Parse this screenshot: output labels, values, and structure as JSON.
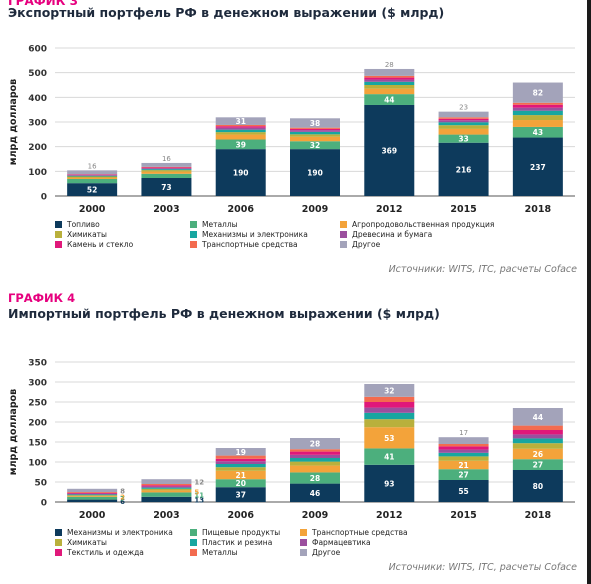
{
  "chart_data": [
    {
      "type": "bar",
      "stacked": true,
      "label": "ГРАФИК 3",
      "title": "Экспортный портфель РФ в денежном выражении ($ млрд)",
      "ylabel": "млрд долларов",
      "ylim": [
        0,
        600
      ],
      "yticks": [
        0,
        100,
        200,
        300,
        400,
        500,
        600
      ],
      "categories": [
        "2000",
        "2003",
        "2006",
        "2009",
        "2012",
        "2015",
        "2018"
      ],
      "grid": true,
      "legend_position": "bottom",
      "source": "Источники: WITS, ITC, расчеты Coface",
      "series": [
        {
          "name": "Топливо",
          "color": "#0d3a5c",
          "values": [
            52,
            73,
            190,
            190,
            369,
            216,
            237
          ]
        },
        {
          "name": "Металлы",
          "color": "#4caf7d",
          "values": [
            17,
            17,
            39,
            32,
            44,
            33,
            43
          ]
        },
        {
          "name": "Агропродовольственная продукция",
          "color": "#f3a33a",
          "values": [
            6,
            9,
            20,
            18,
            22,
            23,
            28
          ]
        },
        {
          "name": "Химикаты",
          "color": "#b9b03c",
          "values": [
            4,
            6,
            10,
            10,
            15,
            15,
            20
          ]
        },
        {
          "name": "Механизмы и электроника",
          "color": "#17a6a0",
          "values": [
            3,
            4,
            10,
            10,
            13,
            12,
            18
          ]
        },
        {
          "name": "Древесина и бумага",
          "color": "#9b4f9e",
          "values": [
            3,
            4,
            8,
            7,
            9,
            8,
            12
          ]
        },
        {
          "name": "Камень и стекло",
          "color": "#e0187a",
          "values": [
            2,
            3,
            6,
            5,
            8,
            6,
            12
          ]
        },
        {
          "name": "Транспортные средства",
          "color": "#f36b4f",
          "values": [
            1,
            2,
            5,
            5,
            7,
            6,
            8
          ]
        },
        {
          "name": "Другое",
          "color": "#a3a3ba",
          "values": [
            16,
            16,
            31,
            38,
            28,
            23,
            82
          ]
        }
      ],
      "data_labels": {
        "Топливо": [
          52,
          73,
          190,
          190,
          369,
          216,
          237
        ],
        "Металлы": [
          17,
          17,
          39,
          32,
          44,
          33,
          43
        ],
        "Другое": [
          16,
          16,
          31,
          38,
          28,
          23,
          82
        ]
      }
    },
    {
      "type": "bar",
      "stacked": true,
      "label": "ГРАФИК 4",
      "title": "Импортный портфель РФ в денежном выражении ($ млрд)",
      "ylabel": "млрд долларов",
      "ylim": [
        0,
        350
      ],
      "yticks": [
        0,
        50,
        100,
        150,
        200,
        250,
        300,
        350
      ],
      "categories": [
        "2000",
        "2003",
        "2006",
        "2009",
        "2012",
        "2015",
        "2018"
      ],
      "grid": true,
      "legend_position": "bottom",
      "source": "Источники: WITS, ITC, расчеты Coface",
      "series": [
        {
          "name": "Механизмы и электроника",
          "color": "#0d3a5c",
          "values": [
            6,
            13,
            37,
            46,
            93,
            55,
            80
          ]
        },
        {
          "name": "Пищевые продукты",
          "color": "#4caf7d",
          "values": [
            7,
            11,
            20,
            28,
            41,
            27,
            27
          ]
        },
        {
          "name": "Транспортные средства",
          "color": "#f3a33a",
          "values": [
            2,
            5,
            21,
            17,
            53,
            21,
            26
          ]
        },
        {
          "name": "Химикаты",
          "color": "#b9b03c",
          "values": [
            2,
            4,
            9,
            10,
            20,
            11,
            14
          ]
        },
        {
          "name": "Пластик и резина",
          "color": "#17a6a0",
          "values": [
            2,
            3,
            8,
            9,
            16,
            9,
            12
          ]
        },
        {
          "name": "Фармацевтика",
          "color": "#9b4f9e",
          "values": [
            2,
            3,
            7,
            8,
            13,
            8,
            10
          ]
        },
        {
          "name": "Текстиль и одежда",
          "color": "#e0187a",
          "values": [
            2,
            3,
            6,
            8,
            14,
            8,
            11
          ]
        },
        {
          "name": "Металлы",
          "color": "#f36b4f",
          "values": [
            2,
            3,
            8,
            6,
            13,
            6,
            11
          ]
        },
        {
          "name": "Другое",
          "color": "#a3a3ba",
          "values": [
            8,
            12,
            19,
            28,
            32,
            17,
            44
          ]
        }
      ],
      "data_labels": {
        "Механизмы и электроника": [
          6,
          13,
          37,
          46,
          93,
          55,
          80
        ],
        "Пищевые продукты": [
          7,
          11,
          20,
          28,
          41,
          27,
          27
        ],
        "Транспортные средства": [
          2,
          5,
          21,
          17,
          53,
          21,
          26
        ],
        "Другое": [
          8,
          12,
          19,
          28,
          32,
          17,
          44
        ]
      }
    }
  ]
}
